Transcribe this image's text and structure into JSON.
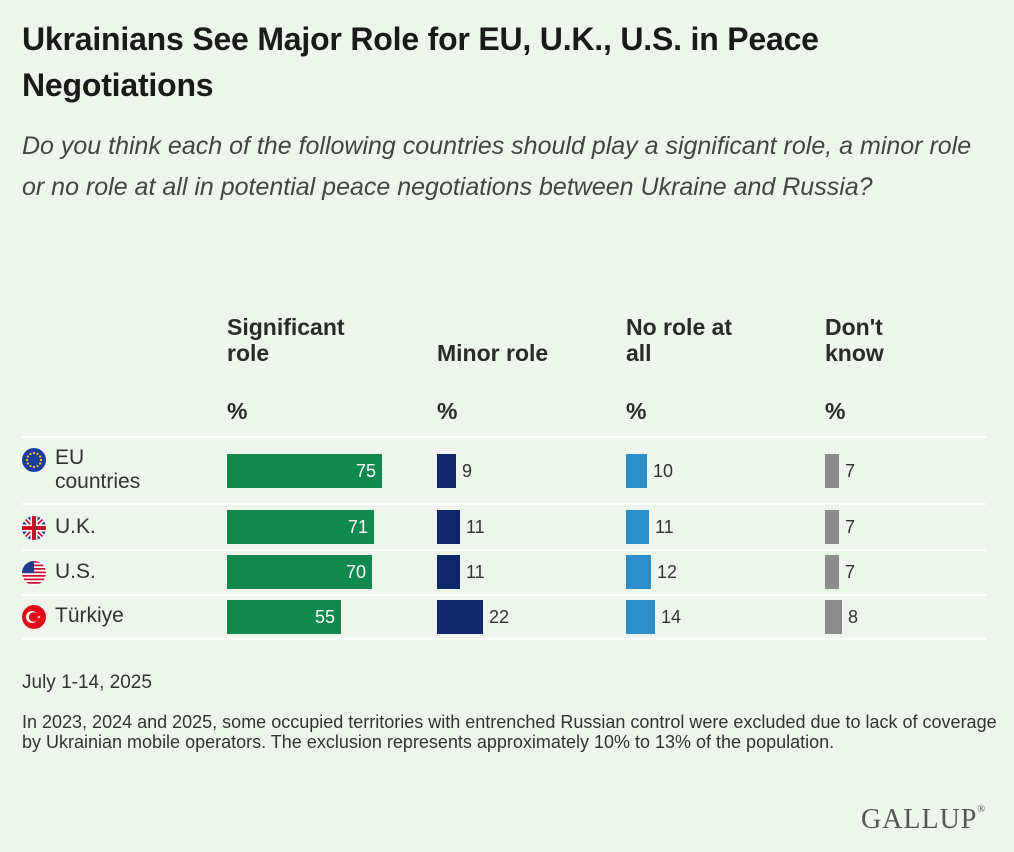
{
  "title": "Ukrainians See Major Role for EU, U.K., U.S. in Peace Negotiations",
  "subtitle": "Do you think each of the following countries should play a significant role, a minor role or no role at all in potential peace negotiations between Ukraine and Russia?",
  "date": "July 1-14, 2025",
  "note": "In 2023, 2024 and 2025, some occupied territories with entrenched Russian control were excluded due to lack of coverage by Ukrainian mobile operators. The exclusion represents approximately 10% to 13% of the population.",
  "logo": "GALLUP",
  "chart_data": {
    "type": "bar",
    "unit": "%",
    "categories": [
      "EU countries",
      "U.K.",
      "U.S.",
      "Türkiye"
    ],
    "category_icons": [
      "eu-flag-icon",
      "uk-flag-icon",
      "us-flag-icon",
      "turkey-flag-icon"
    ],
    "series": [
      {
        "name": "Significant role",
        "color": "#0f8a4c",
        "values": [
          75,
          71,
          70,
          55
        ]
      },
      {
        "name": "Minor role",
        "color": "#0d2769",
        "values": [
          9,
          11,
          11,
          22
        ]
      },
      {
        "name": "No role at all",
        "color": "#2a8fcb",
        "values": [
          10,
          11,
          12,
          14
        ]
      },
      {
        "name": "Don't know",
        "color": "#8c8c8c",
        "values": [
          7,
          7,
          7,
          8
        ]
      }
    ]
  }
}
